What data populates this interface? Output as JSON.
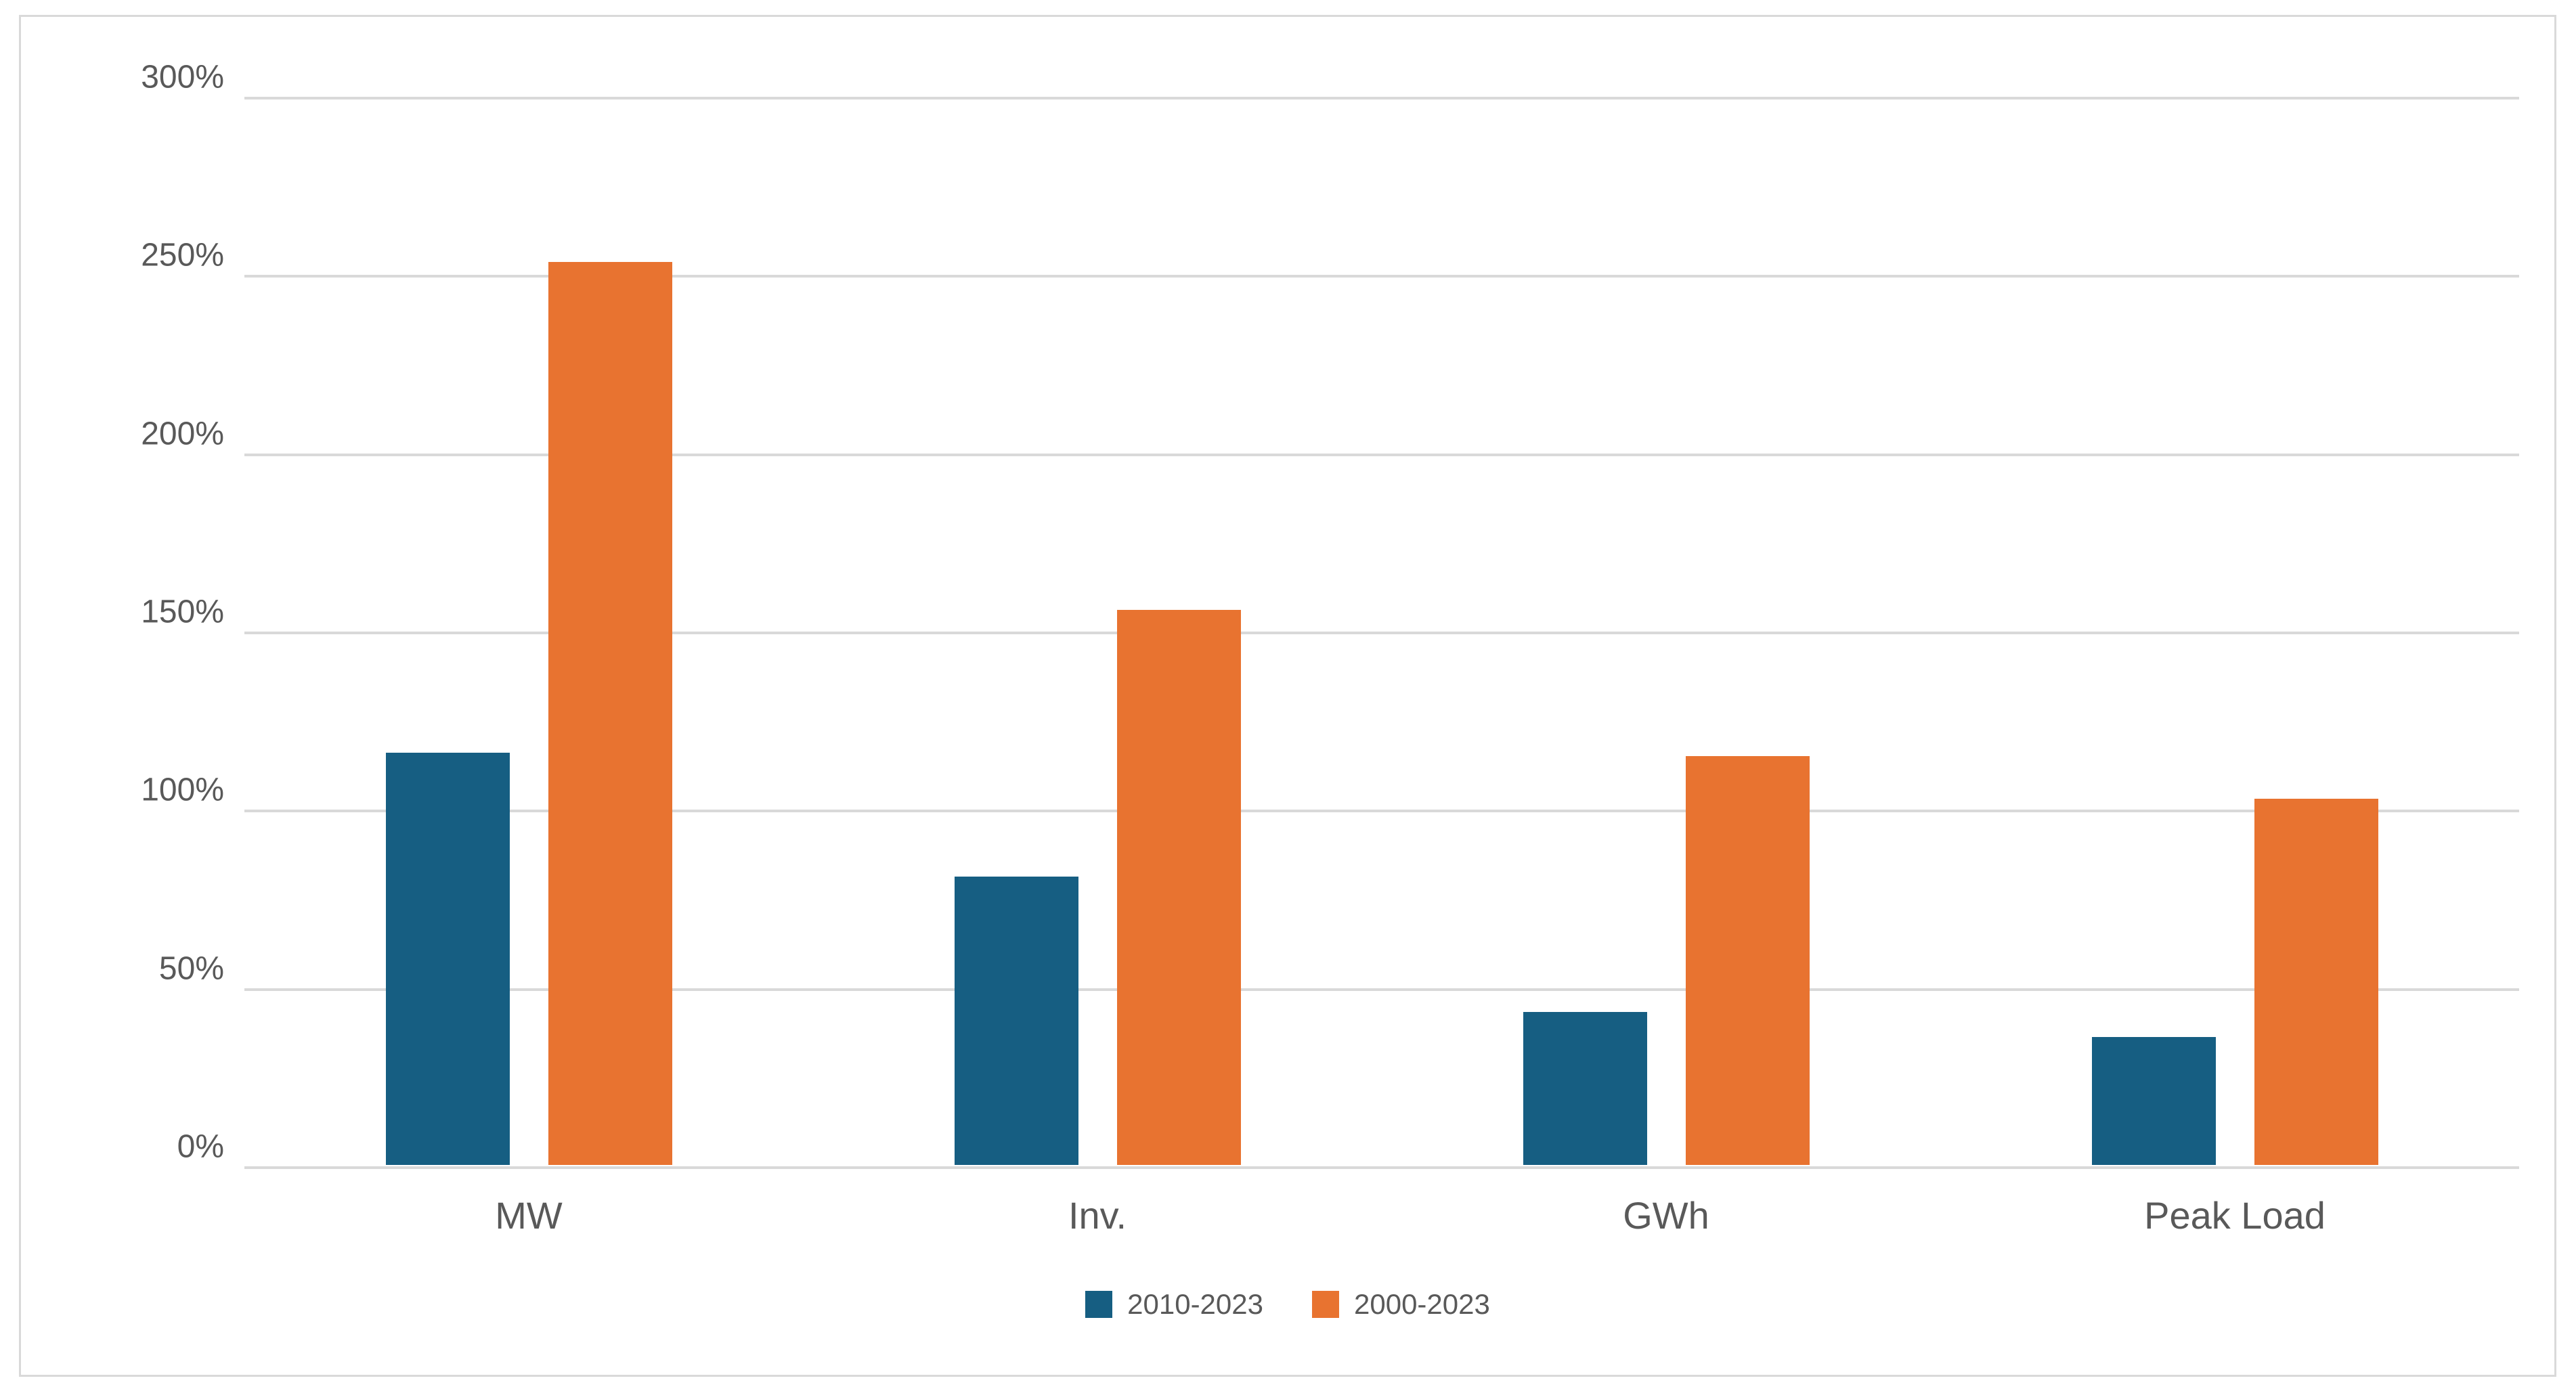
{
  "chart_data": {
    "type": "bar",
    "title": "",
    "categories": [
      "MW",
      "Inv.",
      "GWh",
      "Peak Load"
    ],
    "series": [
      {
        "name": "2010-2023",
        "color": "#165e82",
        "values": [
          116,
          81,
          43,
          36
        ]
      },
      {
        "name": "2000-2023",
        "color": "#e87330",
        "values": [
          254,
          156,
          115,
          103
        ]
      }
    ],
    "value_suffix": "%",
    "ylim": [
      0,
      300
    ],
    "ytick_step": 50,
    "yticks": [
      "0%",
      "50%",
      "100%",
      "150%",
      "200%",
      "250%",
      "300%"
    ],
    "xlabel": "",
    "ylabel": "",
    "grid": "horizontal",
    "legend_position": "bottom"
  },
  "colors": {
    "grid": "#d9d9d9",
    "frame_border": "#d9d9d9",
    "text": "#595959",
    "background": "#ffffff"
  }
}
